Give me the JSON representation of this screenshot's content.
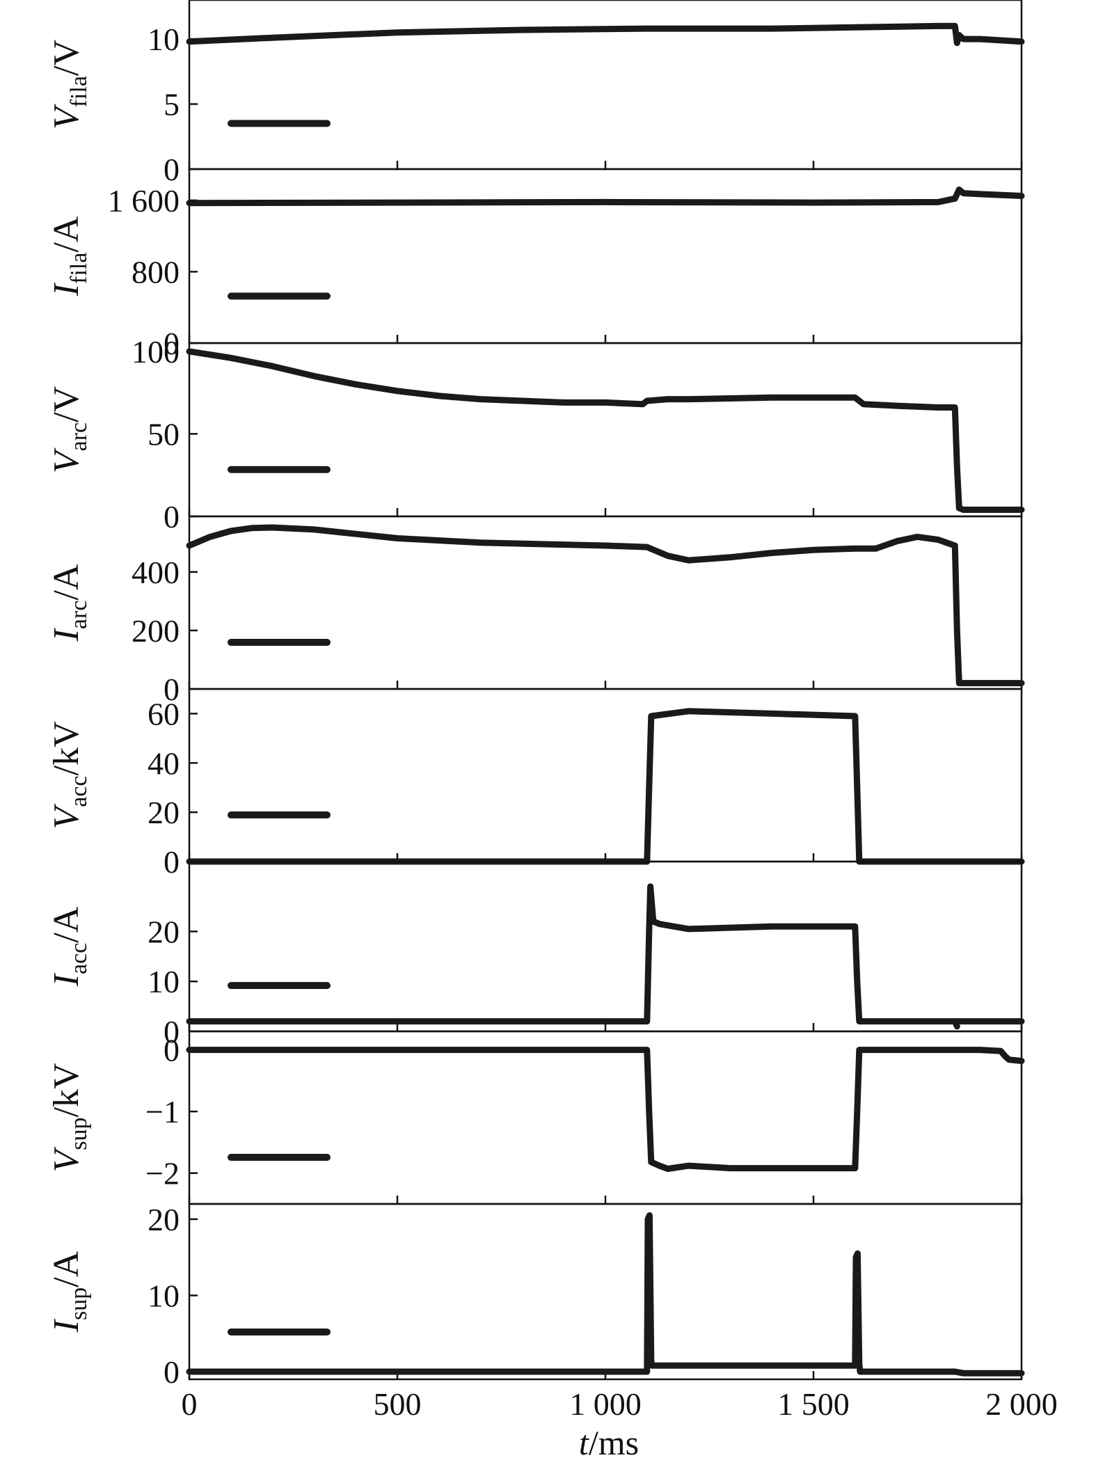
{
  "chart_data": {
    "type": "line",
    "x_axis": {
      "label_italic": "t",
      "label_unit": "/ms",
      "range": [
        0,
        2000
      ],
      "ticks": [
        0,
        500,
        1000,
        1500,
        2000
      ],
      "tick_labels": [
        "0",
        "500",
        "1 000",
        "1 500",
        "2 000"
      ]
    },
    "panels": [
      {
        "symbol": "V",
        "subscript": "fila",
        "unit": "/V",
        "ylim": [
          0,
          13
        ],
        "yticks": [
          0,
          5,
          10
        ],
        "ytick_labels": [
          "0",
          "5",
          "10"
        ],
        "x": [
          0,
          200,
          500,
          800,
          1100,
          1400,
          1600,
          1800,
          1840,
          1845,
          1850,
          1860,
          1900,
          2000
        ],
        "y": [
          9.8,
          10.1,
          10.5,
          10.7,
          10.8,
          10.8,
          10.9,
          11.0,
          11.0,
          9.7,
          10.3,
          10.0,
          10.0,
          9.8
        ]
      },
      {
        "symbol": "I",
        "subscript": "fila",
        "unit": "/A",
        "ylim": [
          0,
          1950
        ],
        "yticks": [
          0,
          800,
          1600
        ],
        "ytick_labels": [
          "0",
          "800",
          "1 600"
        ],
        "x": [
          0,
          500,
          1000,
          1500,
          1800,
          1840,
          1850,
          1860,
          1900,
          2000
        ],
        "y": [
          1570,
          1575,
          1580,
          1575,
          1580,
          1620,
          1720,
          1680,
          1670,
          1650
        ]
      },
      {
        "symbol": "V",
        "subscript": "arc",
        "unit": "/V",
        "ylim": [
          0,
          105
        ],
        "yticks": [
          0,
          50,
          100
        ],
        "ytick_labels": [
          "0",
          "50",
          "100"
        ],
        "x": [
          0,
          100,
          200,
          300,
          400,
          500,
          600,
          700,
          800,
          900,
          1000,
          1090,
          1100,
          1150,
          1200,
          1400,
          1600,
          1610,
          1620,
          1700,
          1800,
          1840,
          1845,
          1850,
          1860,
          2000
        ],
        "y": [
          100,
          96,
          91,
          85,
          80,
          76,
          73,
          71,
          70,
          69,
          69,
          68,
          70,
          71,
          71,
          72,
          72,
          70,
          68,
          67,
          66,
          66,
          30,
          5,
          4,
          4
        ]
      },
      {
        "symbol": "I",
        "subscript": "arc",
        "unit": "/A",
        "ylim": [
          0,
          590
        ],
        "yticks": [
          0,
          200,
          400
        ],
        "ytick_labels": [
          "0",
          "200",
          "400"
        ],
        "x": [
          0,
          50,
          100,
          150,
          200,
          300,
          400,
          500,
          700,
          1000,
          1100,
          1150,
          1200,
          1300,
          1400,
          1500,
          1600,
          1650,
          1700,
          1750,
          1800,
          1840,
          1845,
          1850,
          2000
        ],
        "y": [
          490,
          520,
          540,
          550,
          552,
          545,
          530,
          515,
          500,
          490,
          485,
          455,
          440,
          450,
          465,
          475,
          480,
          480,
          505,
          520,
          510,
          490,
          200,
          20,
          20
        ]
      },
      {
        "symbol": "V",
        "subscript": "acc",
        "unit": "/kV",
        "ylim": [
          0,
          70
        ],
        "yticks": [
          0,
          20,
          40,
          60
        ],
        "ytick_labels": [
          "0",
          "20",
          "40",
          "60"
        ],
        "x": [
          0,
          1100,
          1105,
          1110,
          1200,
          1400,
          1600,
          1605,
          1610,
          2000
        ],
        "y": [
          0,
          0,
          30,
          59,
          61,
          60,
          59,
          30,
          0,
          0
        ]
      },
      {
        "symbol": "I",
        "subscript": "acc",
        "unit": "/A",
        "ylim": [
          0,
          34
        ],
        "yticks": [
          0,
          10,
          20
        ],
        "ytick_labels": [
          "0",
          "10",
          "20"
        ],
        "x": [
          0,
          1100,
          1105,
          1108,
          1115,
          1130,
          1200,
          1400,
          1600,
          1605,
          1610,
          2000
        ],
        "y": [
          2,
          2,
          20,
          29,
          22,
          21.5,
          20.5,
          21,
          21,
          10,
          2,
          2
        ],
        "tail_x": [
          1840,
          1845
        ],
        "tail_y": [
          2,
          1
        ]
      },
      {
        "symbol": "V",
        "subscript": "sup",
        "unit": "/kV",
        "ylim": [
          -2.5,
          0.3
        ],
        "yticks": [
          -2,
          -1,
          0
        ],
        "ytick_labels": [
          "−2",
          "−1",
          "0"
        ],
        "x": [
          0,
          1100,
          1105,
          1110,
          1130,
          1150,
          1200,
          1300,
          1600,
          1605,
          1610,
          1900,
          1950,
          1960,
          1970,
          2000
        ],
        "y": [
          0,
          0,
          -1.0,
          -1.82,
          -1.88,
          -1.93,
          -1.88,
          -1.92,
          -1.92,
          -1.0,
          0,
          0,
          -0.02,
          -0.1,
          -0.16,
          -0.18
        ]
      },
      {
        "symbol": "I",
        "subscript": "sup",
        "unit": "/A",
        "ylim": [
          -1,
          22
        ],
        "yticks": [
          0,
          10,
          20
        ],
        "ytick_labels": [
          "0",
          "10",
          "20"
        ],
        "x": [
          0,
          1100,
          1102,
          1106,
          1110,
          1112,
          1600,
          1602,
          1606,
          1610,
          1612,
          1840,
          1860,
          2000
        ],
        "y": [
          0,
          0,
          20,
          20.5,
          1.5,
          0.8,
          0.8,
          15,
          15.5,
          1,
          0,
          0,
          -0.2,
          -0.2
        ]
      }
    ]
  }
}
